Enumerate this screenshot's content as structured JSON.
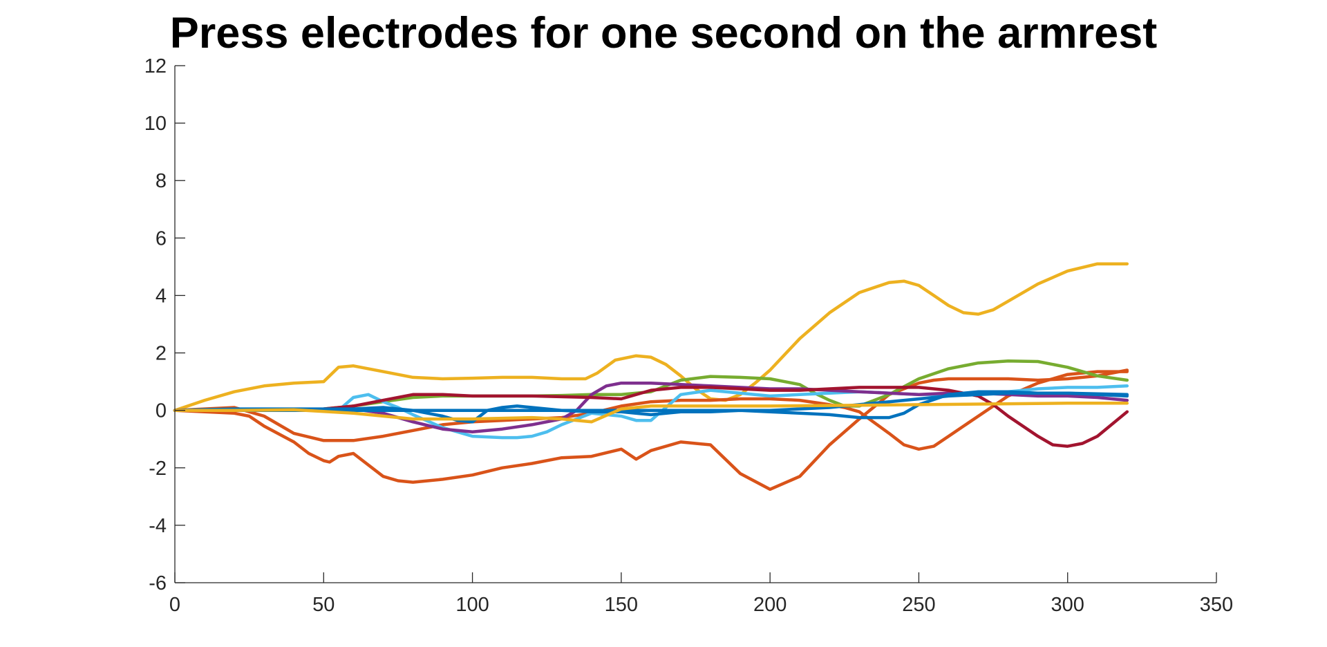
{
  "chart_data": {
    "type": "line",
    "title": "Press electrodes for one second on the armrest",
    "xlabel": "",
    "ylabel": "",
    "xlim": [
      0,
      350
    ],
    "ylim": [
      -6,
      12
    ],
    "xticks": [
      0,
      50,
      100,
      150,
      200,
      250,
      300,
      350
    ],
    "yticks": [
      -6,
      -4,
      -2,
      0,
      2,
      4,
      6,
      8,
      10,
      12
    ],
    "grid": false,
    "legend": "none",
    "series": [
      {
        "color": "#EDB120",
        "x": [
          0,
          10,
          20,
          30,
          40,
          50,
          52,
          55,
          60,
          70,
          80,
          90,
          100,
          110,
          120,
          130,
          138,
          142,
          148,
          155,
          160,
          165,
          170,
          175,
          180,
          185,
          190,
          195,
          200,
          210,
          220,
          230,
          240,
          245,
          250,
          255,
          260,
          265,
          270,
          275,
          280,
          290,
          300,
          310,
          320
        ],
        "y": [
          0,
          0.35,
          0.65,
          0.85,
          0.95,
          1.0,
          1.2,
          1.5,
          1.55,
          1.35,
          1.15,
          1.1,
          1.12,
          1.15,
          1.15,
          1.1,
          1.1,
          1.3,
          1.75,
          1.9,
          1.85,
          1.6,
          1.2,
          0.75,
          0.4,
          0.35,
          0.55,
          0.95,
          1.4,
          2.5,
          3.4,
          4.1,
          4.45,
          4.5,
          4.35,
          4.0,
          3.65,
          3.4,
          3.35,
          3.5,
          3.8,
          4.4,
          4.85,
          5.1,
          5.1
        ]
      },
      {
        "color": "#D95319",
        "x": [
          0,
          10,
          20,
          25,
          30,
          40,
          45,
          50,
          52,
          55,
          60,
          70,
          75,
          80,
          90,
          100,
          110,
          120,
          130,
          140,
          150,
          155,
          160,
          170,
          180,
          190,
          200,
          210,
          220,
          230,
          240,
          250,
          255,
          260,
          270,
          280,
          290,
          300,
          310,
          320
        ],
        "y": [
          0,
          -0.05,
          -0.1,
          -0.2,
          -0.55,
          -1.1,
          -1.5,
          -1.75,
          -1.8,
          -1.6,
          -1.5,
          -2.3,
          -2.45,
          -2.5,
          -2.4,
          -2.25,
          -2.0,
          -1.85,
          -1.65,
          -1.6,
          -1.35,
          -1.7,
          -1.4,
          -1.1,
          -1.2,
          -2.2,
          -2.75,
          -2.3,
          -1.2,
          -0.3,
          0.55,
          0.95,
          1.05,
          1.1,
          1.1,
          1.1,
          1.05,
          1.1,
          1.2,
          1.4
        ]
      },
      {
        "color": "#D95319",
        "x": [
          0,
          10,
          20,
          30,
          40,
          50,
          60,
          70,
          80,
          90,
          100,
          110,
          120,
          130,
          140,
          150,
          160,
          170,
          180,
          190,
          200,
          210,
          220,
          225,
          230,
          240,
          245,
          250,
          255,
          260,
          270,
          280,
          290,
          300,
          310,
          320
        ],
        "y": [
          0,
          0.05,
          0.1,
          -0.2,
          -0.8,
          -1.05,
          -1.05,
          -0.9,
          -0.7,
          -0.5,
          -0.4,
          -0.35,
          -0.3,
          -0.25,
          -0.1,
          0.15,
          0.3,
          0.35,
          0.35,
          0.4,
          0.4,
          0.35,
          0.2,
          0.1,
          -0.05,
          -0.8,
          -1.2,
          -1.35,
          -1.25,
          -0.9,
          -0.2,
          0.5,
          0.95,
          1.25,
          1.35,
          1.35
        ]
      },
      {
        "color": "#77AC30",
        "x": [
          0,
          20,
          40,
          50,
          60,
          70,
          80,
          90,
          100,
          110,
          120,
          130,
          140,
          150,
          160,
          170,
          180,
          190,
          200,
          210,
          215,
          220,
          225,
          230,
          240,
          250,
          260,
          270,
          280,
          290,
          300,
          310,
          320
        ],
        "y": [
          0,
          0.0,
          0.02,
          0.05,
          0.15,
          0.3,
          0.45,
          0.5,
          0.5,
          0.5,
          0.5,
          0.52,
          0.55,
          0.55,
          0.65,
          1.05,
          1.18,
          1.15,
          1.1,
          0.9,
          0.6,
          0.35,
          0.15,
          0.15,
          0.55,
          1.1,
          1.45,
          1.65,
          1.72,
          1.7,
          1.5,
          1.2,
          1.05
        ]
      },
      {
        "color": "#4DBEEE",
        "x": [
          0,
          20,
          40,
          55,
          60,
          65,
          70,
          75,
          80,
          90,
          100,
          110,
          115,
          120,
          125,
          130,
          140,
          150,
          155,
          160,
          165,
          170,
          180,
          190,
          200,
          210,
          220,
          230,
          240,
          250,
          260,
          270,
          280,
          290,
          300,
          310,
          320
        ],
        "y": [
          0,
          0.0,
          0.0,
          0.0,
          0.45,
          0.55,
          0.3,
          0.1,
          -0.15,
          -0.6,
          -0.9,
          -0.95,
          -0.95,
          -0.9,
          -0.75,
          -0.5,
          -0.1,
          -0.2,
          -0.35,
          -0.35,
          0.1,
          0.55,
          0.7,
          0.6,
          0.5,
          0.55,
          0.6,
          0.65,
          0.6,
          0.55,
          0.55,
          0.6,
          0.65,
          0.75,
          0.8,
          0.8,
          0.85
        ]
      },
      {
        "color": "#7E2F8E",
        "x": [
          0,
          20,
          40,
          60,
          70,
          80,
          90,
          100,
          110,
          120,
          130,
          135,
          140,
          145,
          150,
          160,
          170,
          180,
          190,
          200,
          210,
          220,
          230,
          240,
          250,
          260,
          270,
          280,
          290,
          300,
          310,
          320
        ],
        "y": [
          0,
          0.02,
          0.03,
          0.05,
          -0.1,
          -0.4,
          -0.65,
          -0.75,
          -0.65,
          -0.5,
          -0.3,
          0.0,
          0.55,
          0.85,
          0.95,
          0.95,
          0.9,
          0.85,
          0.8,
          0.75,
          0.75,
          0.7,
          0.65,
          0.6,
          0.55,
          0.6,
          0.6,
          0.55,
          0.5,
          0.5,
          0.45,
          0.35
        ]
      },
      {
        "color": "#A2142F",
        "x": [
          0,
          20,
          40,
          50,
          60,
          70,
          80,
          90,
          100,
          120,
          140,
          150,
          160,
          170,
          180,
          190,
          200,
          210,
          220,
          230,
          240,
          250,
          260,
          270,
          275,
          280,
          290,
          295,
          300,
          305,
          310,
          320
        ],
        "y": [
          0,
          0.0,
          0.02,
          0.05,
          0.15,
          0.35,
          0.55,
          0.55,
          0.5,
          0.5,
          0.45,
          0.4,
          0.7,
          0.8,
          0.8,
          0.75,
          0.7,
          0.7,
          0.75,
          0.8,
          0.8,
          0.8,
          0.7,
          0.5,
          0.2,
          -0.2,
          -0.9,
          -1.2,
          -1.25,
          -1.15,
          -0.9,
          -0.05
        ]
      },
      {
        "color": "#0072BD",
        "x": [
          0,
          20,
          40,
          60,
          70,
          80,
          90,
          95,
          100,
          105,
          110,
          115,
          120,
          130,
          140,
          150,
          160,
          170,
          180,
          190,
          200,
          210,
          220,
          230,
          240,
          245,
          250,
          260,
          270,
          280,
          290,
          300,
          310,
          320
        ],
        "y": [
          0,
          0.05,
          0.05,
          0.05,
          0.1,
          0.0,
          -0.2,
          -0.35,
          -0.4,
          0.0,
          0.1,
          0.15,
          0.1,
          0.0,
          -0.05,
          -0.05,
          -0.15,
          -0.05,
          -0.05,
          0.0,
          -0.05,
          -0.1,
          -0.15,
          -0.25,
          -0.25,
          -0.1,
          0.2,
          0.55,
          0.65,
          0.65,
          0.6,
          0.6,
          0.55,
          0.5
        ]
      },
      {
        "color": "#0072BD",
        "x": [
          0,
          50,
          100,
          150,
          200,
          220,
          240,
          260,
          280,
          300,
          320
        ],
        "y": [
          0,
          0.0,
          0.0,
          0.0,
          0.0,
          0.1,
          0.3,
          0.5,
          0.6,
          0.6,
          0.55
        ]
      },
      {
        "color": "#EDB120",
        "x": [
          0,
          20,
          40,
          60,
          80,
          100,
          120,
          130,
          140,
          150,
          160,
          200,
          250,
          300,
          320
        ],
        "y": [
          0,
          0.0,
          0.02,
          -0.1,
          -0.3,
          -0.3,
          -0.25,
          -0.3,
          -0.4,
          0.05,
          0.15,
          0.15,
          0.2,
          0.25,
          0.25
        ]
      }
    ]
  }
}
